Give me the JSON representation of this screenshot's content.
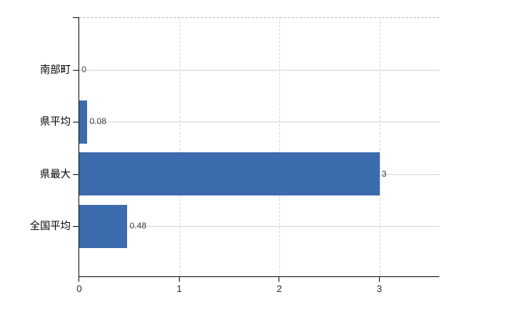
{
  "chart_data": {
    "type": "bar",
    "orientation": "horizontal",
    "title": "",
    "xlabel": "",
    "ylabel": "",
    "categories": [
      "南部町",
      "県平均",
      "県最大",
      "全国平均"
    ],
    "values": [
      0,
      0.08,
      3,
      0.48
    ],
    "value_labels": [
      "0",
      "0.08",
      "3",
      "0.48"
    ],
    "x_ticks": [
      0,
      1,
      2,
      3
    ],
    "x_tick_labels": [
      "0",
      "1",
      "2",
      "3"
    ],
    "xlim": [
      0,
      3.6
    ],
    "grid": true,
    "legend": false,
    "gridline_style": {
      "horizontal": "solid",
      "vertical": "dashed",
      "top_border": "dashed"
    },
    "colors": {
      "bar": "#3c6cae",
      "axis": "#1a1a1a",
      "gridline": "#d2dbd2",
      "top_border": "#bfbfbf",
      "value_label": "#3d3d3d",
      "category_label": "#000000",
      "tick_label": "#262626",
      "background": "#ffffff"
    }
  }
}
